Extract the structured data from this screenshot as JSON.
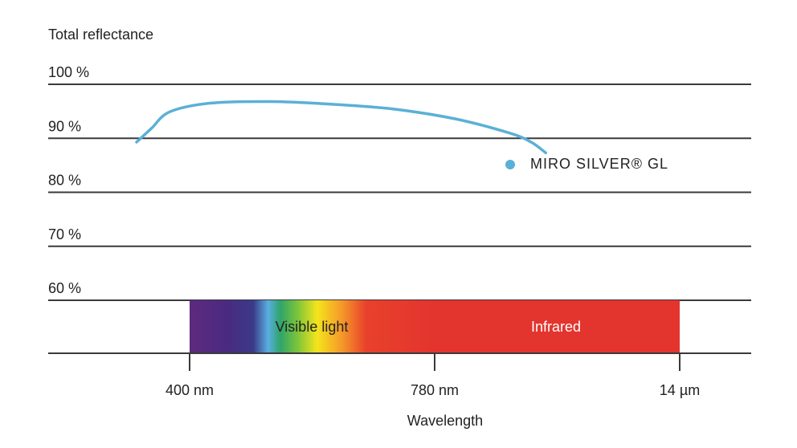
{
  "chart_data": {
    "type": "line",
    "ylabel": "Total reflectance",
    "xlabel": "Wavelength",
    "ylim": [
      50,
      100
    ],
    "yticks": [
      "100 %",
      "90 %",
      "80 %",
      "70 %",
      "60 %"
    ],
    "ytick_values": [
      100,
      90,
      80,
      70,
      60
    ],
    "xticks": [
      "400 nm",
      "780 nm",
      "14 µm"
    ],
    "grid": true,
    "legend": "right",
    "series": [
      {
        "name": "MIRO SILVER® GL",
        "color": "#5bb0d6",
        "points": [
          {
            "x": 0.0,
            "y": 89.3
          },
          {
            "x": 0.06,
            "y": 91.8
          },
          {
            "x": 0.135,
            "y": 94.9
          },
          {
            "x": 0.3,
            "y": 96.5
          },
          {
            "x": 0.55,
            "y": 96.8
          },
          {
            "x": 0.8,
            "y": 96.3
          },
          {
            "x": 1.05,
            "y": 95.4
          },
          {
            "x": 1.3,
            "y": 93.6
          },
          {
            "x": 1.52,
            "y": 91.0
          },
          {
            "x": 1.61,
            "y": 89.3
          },
          {
            "x": 1.67,
            "y": 87.3
          }
        ]
      }
    ],
    "spectrum_bands": [
      {
        "label": "Visible light",
        "from": "400 nm",
        "to": "780 nm"
      },
      {
        "label": "Infrared",
        "from": "780 nm",
        "to": "14 µm"
      }
    ]
  }
}
